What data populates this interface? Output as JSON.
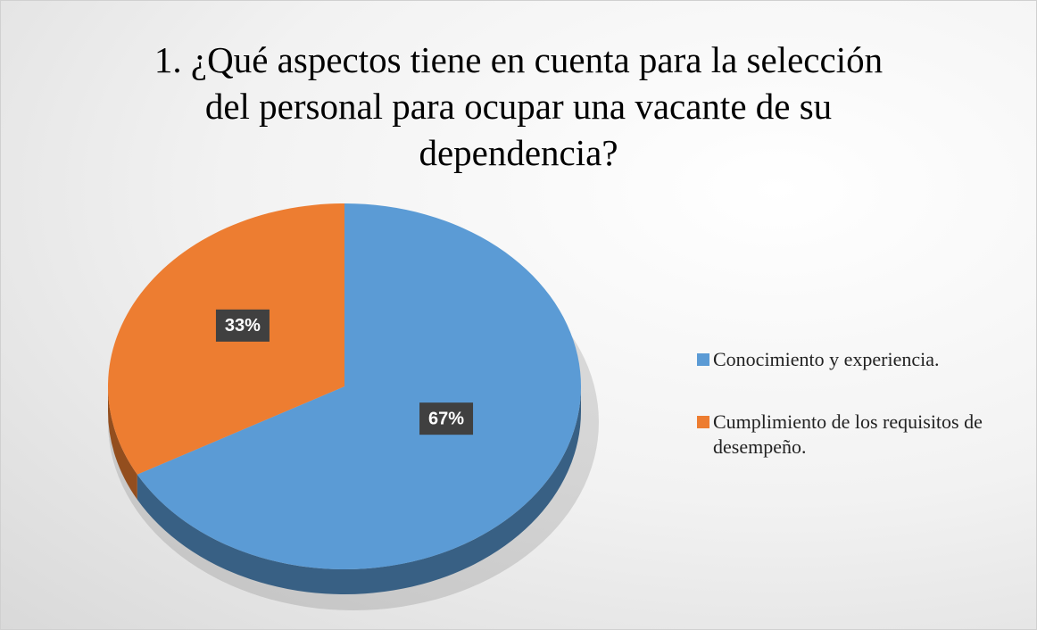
{
  "chart_data": {
    "type": "pie",
    "title": "1. ¿Qué aspectos tiene en cuenta para la selección del personal para ocupar una vacante de su dependencia?",
    "categories": [
      "Conocimiento y experiencia.",
      "Cumplimiento de los requisitos de desempeño."
    ],
    "values": [
      67,
      33
    ],
    "value_labels": [
      "67%",
      "33%"
    ],
    "colors": [
      "#5b9bd5",
      "#ed7d31"
    ],
    "legend": "right"
  }
}
